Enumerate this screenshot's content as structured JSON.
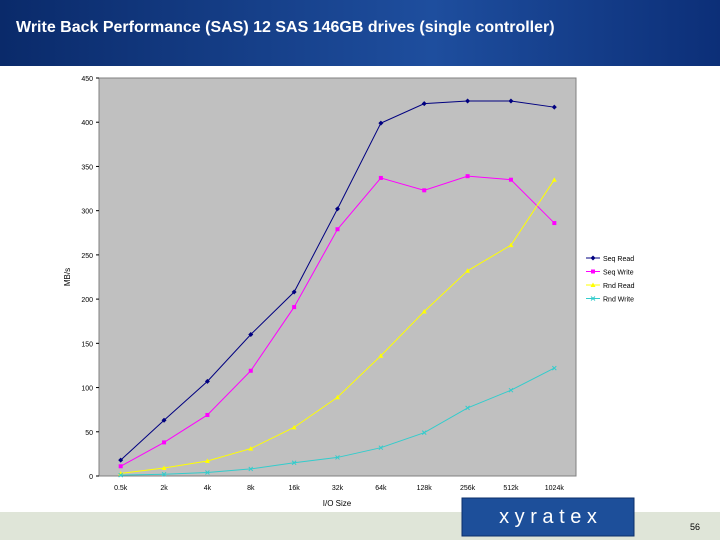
{
  "chart_data": {
    "type": "line",
    "title": "Write Back Performance (SAS) 12 SAS 146GB drives (single controller)",
    "x_label": "I/O Size",
    "y_label": "MB/s",
    "categories": [
      "0.5k",
      "2k",
      "4k",
      "8k",
      "16k",
      "32k",
      "64k",
      "128k",
      "256k",
      "512k",
      "1024k"
    ],
    "series": [
      {
        "name": "Seq Read",
        "color": "#000080",
        "marker": "diamond",
        "values": [
          18,
          63,
          107,
          160,
          208,
          302,
          399,
          421,
          424,
          424,
          417
        ]
      },
      {
        "name": "Seq Write",
        "color": "#ff00ff",
        "marker": "square",
        "values": [
          11,
          38,
          69,
          119,
          191,
          279,
          337,
          323,
          339,
          335,
          286
        ]
      },
      {
        "name": "Rnd Read",
        "color": "#ffff00",
        "marker": "triangle",
        "values": [
          3,
          9,
          17,
          31,
          55,
          89,
          136,
          186,
          232,
          261,
          335
        ]
      },
      {
        "name": "Rnd Write",
        "color": "#33cccc",
        "marker": "x",
        "values": [
          1,
          2,
          4,
          8,
          15,
          21,
          32,
          49,
          77,
          97,
          122
        ]
      }
    ],
    "ylim": [
      0,
      450
    ],
    "yticks": [
      0,
      50,
      100,
      150,
      200,
      250,
      300,
      350,
      400,
      450
    ],
    "legend": "right"
  },
  "logo": "x y r a t e x",
  "page_number": "56"
}
